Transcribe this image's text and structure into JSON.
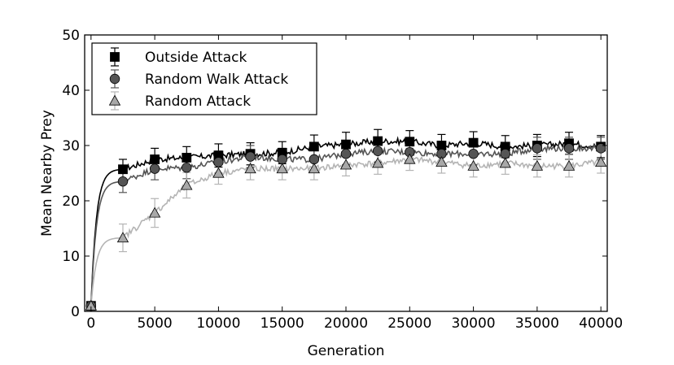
{
  "chart_data": {
    "type": "line",
    "title": "",
    "xlabel": "Generation",
    "ylabel": "Mean Nearby Prey",
    "xlim": [
      -500,
      40500
    ],
    "ylim": [
      0,
      50
    ],
    "xticks": [
      0,
      5000,
      10000,
      15000,
      20000,
      25000,
      30000,
      35000,
      40000
    ],
    "yticks": [
      0,
      10,
      20,
      30,
      40,
      50
    ],
    "grid": false,
    "legend": {
      "position": "upper-left"
    },
    "series": [
      {
        "name": "Outside Attack",
        "marker": "square",
        "color": "#000000",
        "marker_fill": "#000000",
        "points": [
          {
            "x": 0,
            "y": 1.0,
            "err": 0.5
          },
          {
            "x": 2500,
            "y": 25.7,
            "err": 1.8
          },
          {
            "x": 5000,
            "y": 27.5,
            "err": 2.0
          },
          {
            "x": 7500,
            "y": 27.8,
            "err": 2.0
          },
          {
            "x": 10000,
            "y": 28.2,
            "err": 2.1
          },
          {
            "x": 12500,
            "y": 28.5,
            "err": 2.0
          },
          {
            "x": 15000,
            "y": 28.7,
            "err": 2.0
          },
          {
            "x": 17500,
            "y": 29.8,
            "err": 2.1
          },
          {
            "x": 20000,
            "y": 30.2,
            "err": 2.2
          },
          {
            "x": 22500,
            "y": 30.8,
            "err": 2.1
          },
          {
            "x": 25000,
            "y": 30.7,
            "err": 2.0
          },
          {
            "x": 27500,
            "y": 30.0,
            "err": 2.0
          },
          {
            "x": 30000,
            "y": 30.5,
            "err": 2.0
          },
          {
            "x": 32500,
            "y": 29.8,
            "err": 2.0
          },
          {
            "x": 35000,
            "y": 30.0,
            "err": 2.0
          },
          {
            "x": 37500,
            "y": 30.4,
            "err": 2.0
          },
          {
            "x": 40000,
            "y": 29.8,
            "err": 2.0
          }
        ]
      },
      {
        "name": "Random Walk Attack",
        "marker": "circle",
        "color": "#555555",
        "marker_fill": "#555555",
        "points": [
          {
            "x": 0,
            "y": 1.0,
            "err": 0.5
          },
          {
            "x": 2500,
            "y": 23.5,
            "err": 2.0
          },
          {
            "x": 5000,
            "y": 25.8,
            "err": 2.0
          },
          {
            "x": 7500,
            "y": 26.0,
            "err": 2.0
          },
          {
            "x": 10000,
            "y": 27.0,
            "err": 2.0
          },
          {
            "x": 12500,
            "y": 28.0,
            "err": 2.0
          },
          {
            "x": 15000,
            "y": 27.5,
            "err": 2.0
          },
          {
            "x": 17500,
            "y": 27.5,
            "err": 2.0
          },
          {
            "x": 20000,
            "y": 28.5,
            "err": 2.0
          },
          {
            "x": 22500,
            "y": 29.0,
            "err": 2.0
          },
          {
            "x": 25000,
            "y": 28.8,
            "err": 2.0
          },
          {
            "x": 27500,
            "y": 28.5,
            "err": 2.0
          },
          {
            "x": 30000,
            "y": 28.5,
            "err": 2.0
          },
          {
            "x": 32500,
            "y": 28.5,
            "err": 2.0
          },
          {
            "x": 35000,
            "y": 29.5,
            "err": 2.0
          },
          {
            "x": 37500,
            "y": 29.5,
            "err": 2.0
          },
          {
            "x": 40000,
            "y": 29.5,
            "err": 2.0
          }
        ]
      },
      {
        "name": "Random Attack",
        "marker": "triangle",
        "color": "#b4b4b4",
        "marker_fill": "#a8a8a8",
        "points": [
          {
            "x": 0,
            "y": 1.0,
            "err": 0.5
          },
          {
            "x": 2500,
            "y": 13.3,
            "err": 2.5
          },
          {
            "x": 5000,
            "y": 17.8,
            "err": 2.6
          },
          {
            "x": 7500,
            "y": 22.8,
            "err": 2.3
          },
          {
            "x": 10000,
            "y": 25.0,
            "err": 2.0
          },
          {
            "x": 12500,
            "y": 25.8,
            "err": 2.0
          },
          {
            "x": 15000,
            "y": 25.8,
            "err": 2.0
          },
          {
            "x": 17500,
            "y": 25.8,
            "err": 2.0
          },
          {
            "x": 20000,
            "y": 26.5,
            "err": 2.0
          },
          {
            "x": 22500,
            "y": 26.8,
            "err": 2.0
          },
          {
            "x": 25000,
            "y": 27.5,
            "err": 2.0
          },
          {
            "x": 27500,
            "y": 27.0,
            "err": 2.0
          },
          {
            "x": 30000,
            "y": 26.3,
            "err": 2.0
          },
          {
            "x": 32500,
            "y": 26.8,
            "err": 2.0
          },
          {
            "x": 35000,
            "y": 26.3,
            "err": 2.0
          },
          {
            "x": 37500,
            "y": 26.3,
            "err": 2.0
          },
          {
            "x": 40000,
            "y": 27.0,
            "err": 2.0
          }
        ]
      }
    ]
  }
}
